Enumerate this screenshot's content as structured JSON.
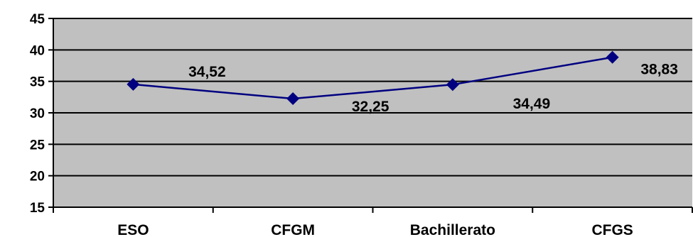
{
  "chart_data": {
    "type": "line",
    "categories": [
      "ESO",
      "CFGM",
      "Bachillerato",
      "CFGS"
    ],
    "series": [
      {
        "values": [
          34.52,
          32.25,
          34.49,
          38.83
        ]
      }
    ],
    "data_labels": [
      "34,52",
      "32,25",
      "34,49",
      "38,83"
    ],
    "y_ticks": [
      "15",
      "20",
      "25",
      "30",
      "35",
      "40",
      "45"
    ],
    "ylim": [
      15,
      45
    ],
    "grid": true,
    "legend": "none",
    "colors": {
      "plot_background": "#c0c0c0",
      "series_line": "#000080",
      "gridlines": "#000000"
    }
  }
}
